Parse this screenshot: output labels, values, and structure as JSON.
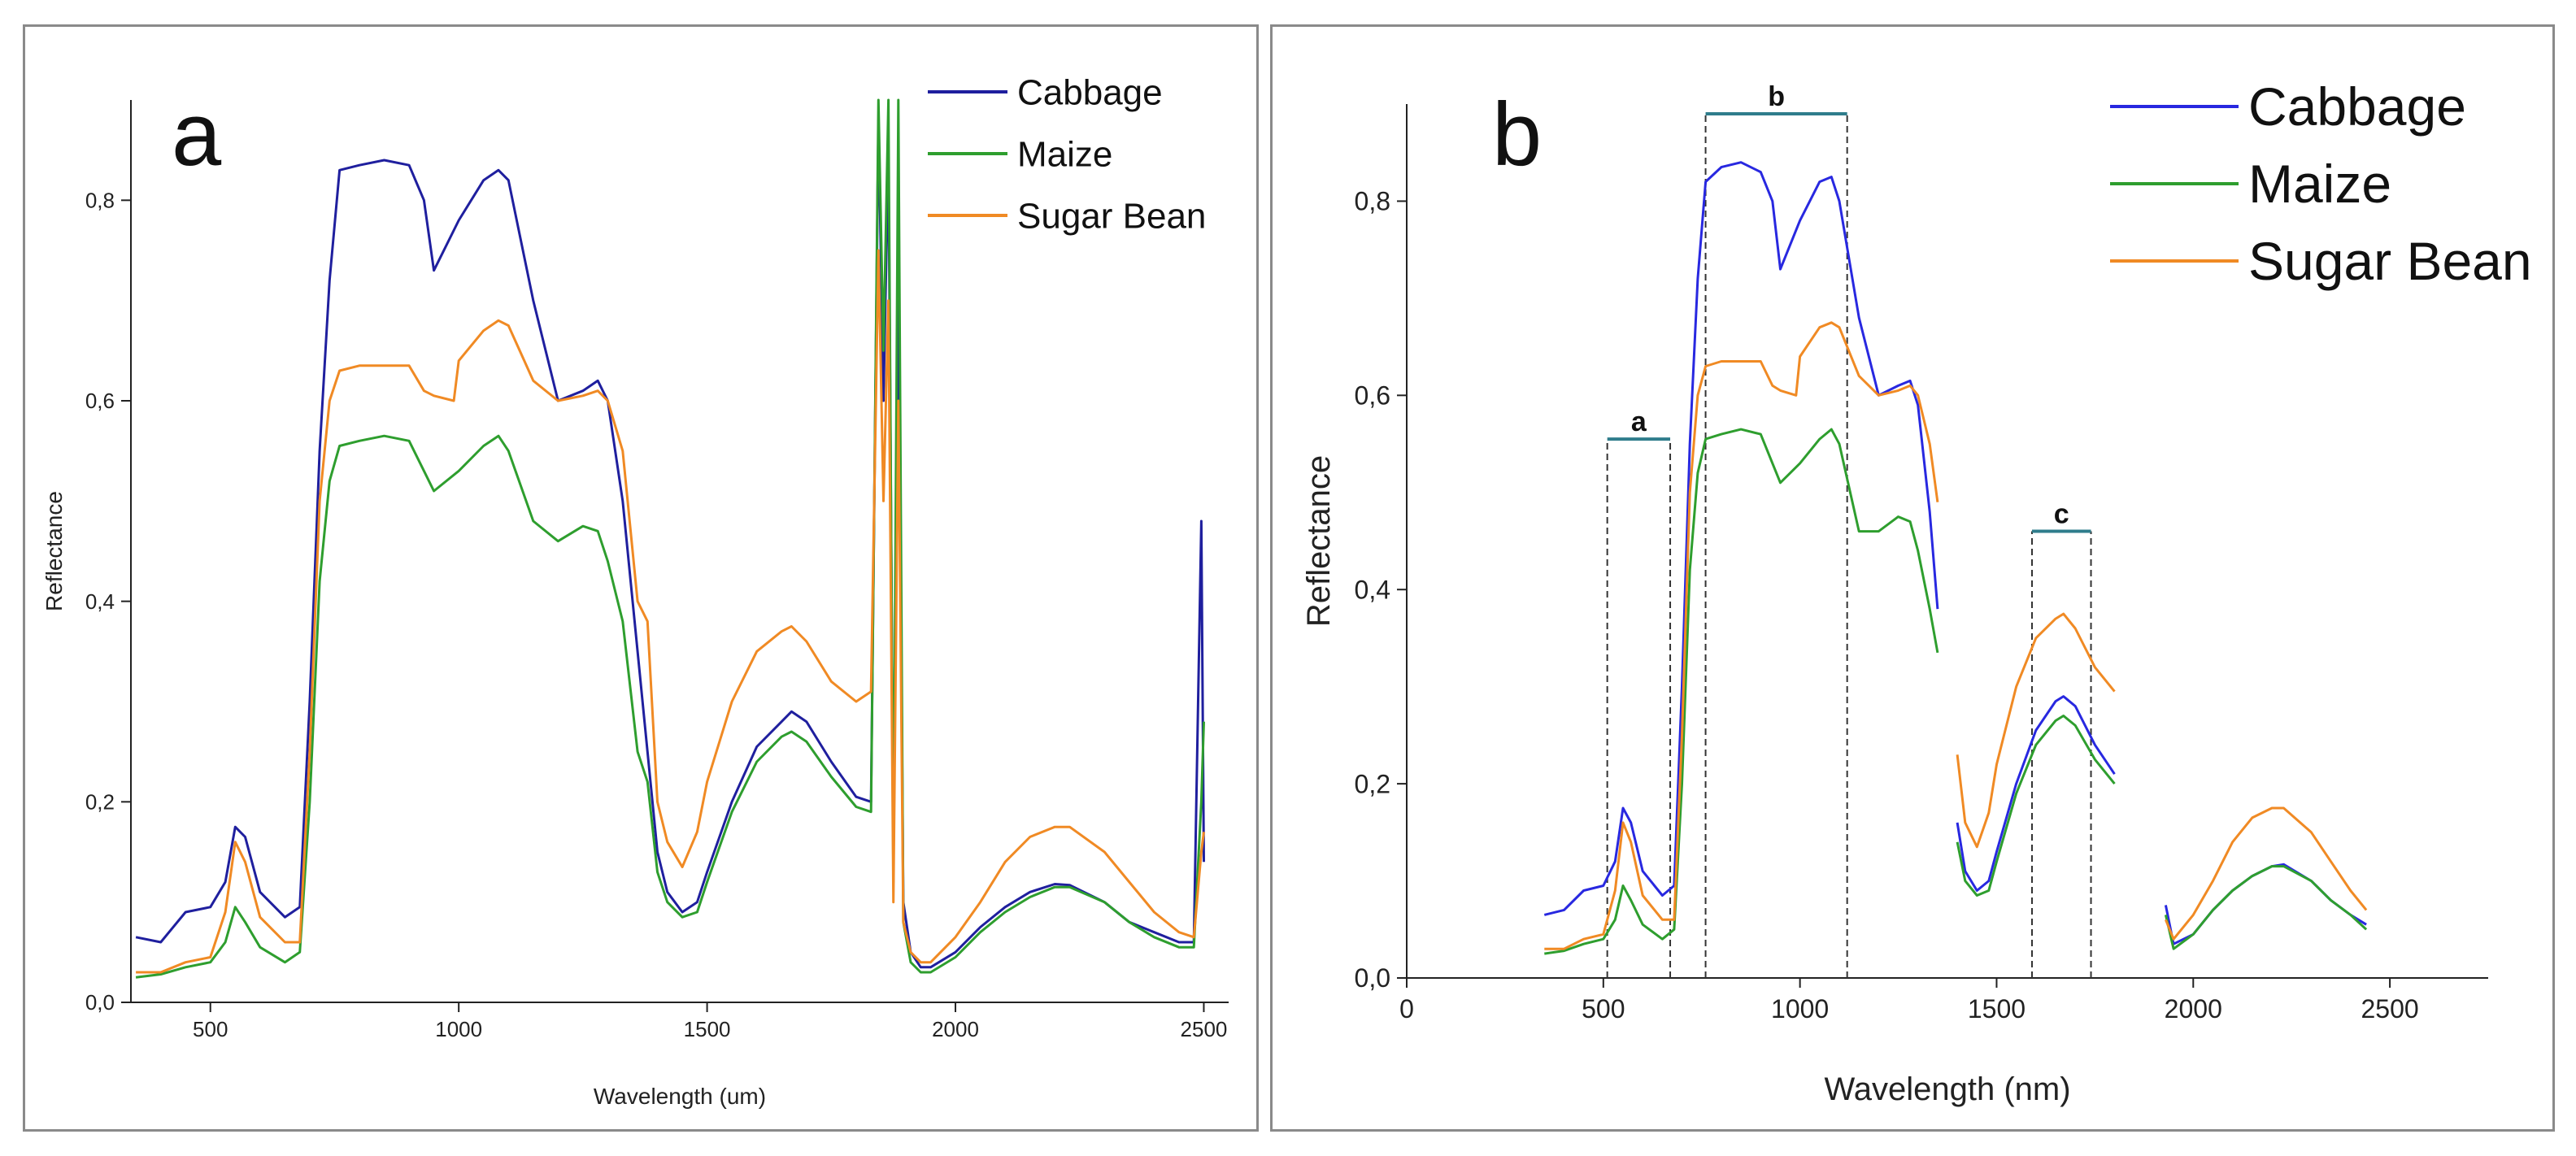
{
  "chart_data": [
    {
      "type": "line",
      "panel_label": "a",
      "title": "",
      "xlabel": "Wavelength (um)",
      "ylabel": "Reflectance",
      "xlim": [
        340,
        2550
      ],
      "ylim": [
        0,
        0.9
      ],
      "x_ticks": [
        500,
        1000,
        1500,
        2000,
        2500
      ],
      "x_tick_labels": [
        "500",
        "1000",
        "1500",
        "2000",
        "2500"
      ],
      "y_ticks": [
        0,
        0.2,
        0.4,
        0.6,
        0.8
      ],
      "y_tick_labels": [
        "0,0",
        "0,2",
        "0,4",
        "0,6",
        "0,8"
      ],
      "legend_position": "top-right",
      "series": [
        {
          "name": "Cabbage",
          "color": "#1f1f9e",
          "x": [
            350,
            400,
            450,
            500,
            530,
            550,
            570,
            600,
            650,
            680,
            700,
            720,
            740,
            760,
            800,
            850,
            900,
            930,
            950,
            1000,
            1050,
            1080,
            1100,
            1150,
            1200,
            1250,
            1280,
            1300,
            1330,
            1360,
            1380,
            1400,
            1420,
            1450,
            1480,
            1500,
            1550,
            1600,
            1650,
            1670,
            1700,
            1750,
            1800,
            1830,
            1845,
            1855,
            1865,
            1875,
            1885,
            1895,
            1910,
            1930,
            1950,
            2000,
            2050,
            2100,
            2150,
            2200,
            2230,
            2300,
            2350,
            2400,
            2450,
            2480,
            2495,
            2500
          ],
          "y": [
            0.065,
            0.06,
            0.09,
            0.095,
            0.12,
            0.175,
            0.165,
            0.11,
            0.085,
            0.095,
            0.3,
            0.55,
            0.72,
            0.83,
            0.835,
            0.84,
            0.835,
            0.8,
            0.73,
            0.78,
            0.82,
            0.83,
            0.82,
            0.7,
            0.6,
            0.61,
            0.62,
            0.6,
            0.5,
            0.35,
            0.25,
            0.15,
            0.11,
            0.09,
            0.1,
            0.13,
            0.2,
            0.255,
            0.28,
            0.29,
            0.28,
            0.24,
            0.205,
            0.2,
            0.88,
            0.6,
            0.85,
            0.15,
            0.7,
            0.1,
            0.05,
            0.035,
            0.035,
            0.05,
            0.075,
            0.095,
            0.11,
            0.118,
            0.117,
            0.1,
            0.08,
            0.07,
            0.06,
            0.06,
            0.48,
            0.14
          ]
        },
        {
          "name": "Maize",
          "color": "#2e9e2e",
          "x": [
            350,
            400,
            450,
            500,
            530,
            550,
            570,
            600,
            650,
            680,
            700,
            720,
            740,
            760,
            800,
            850,
            900,
            930,
            950,
            1000,
            1050,
            1080,
            1100,
            1150,
            1200,
            1250,
            1280,
            1300,
            1330,
            1360,
            1380,
            1400,
            1420,
            1450,
            1480,
            1500,
            1550,
            1600,
            1650,
            1670,
            1700,
            1750,
            1800,
            1830,
            1845,
            1855,
            1865,
            1875,
            1885,
            1895,
            1910,
            1930,
            1950,
            2000,
            2050,
            2100,
            2150,
            2200,
            2230,
            2300,
            2350,
            2400,
            2450,
            2480,
            2495,
            2500
          ],
          "y": [
            0.025,
            0.028,
            0.035,
            0.04,
            0.06,
            0.095,
            0.08,
            0.055,
            0.04,
            0.05,
            0.2,
            0.42,
            0.52,
            0.555,
            0.56,
            0.565,
            0.56,
            0.53,
            0.51,
            0.53,
            0.555,
            0.565,
            0.55,
            0.48,
            0.46,
            0.475,
            0.47,
            0.44,
            0.38,
            0.25,
            0.22,
            0.13,
            0.1,
            0.085,
            0.09,
            0.12,
            0.19,
            0.24,
            0.265,
            0.27,
            0.26,
            0.225,
            0.195,
            0.19,
            0.9,
            0.65,
            0.9,
            0.12,
            0.9,
            0.08,
            0.04,
            0.03,
            0.03,
            0.045,
            0.07,
            0.09,
            0.105,
            0.115,
            0.115,
            0.1,
            0.08,
            0.065,
            0.055,
            0.055,
            0.2,
            0.28
          ]
        },
        {
          "name": "Sugar Bean",
          "color": "#f08a24",
          "x": [
            350,
            400,
            450,
            500,
            530,
            550,
            570,
            600,
            650,
            680,
            700,
            720,
            740,
            760,
            800,
            850,
            900,
            930,
            950,
            990,
            1000,
            1050,
            1080,
            1100,
            1150,
            1200,
            1250,
            1280,
            1300,
            1330,
            1360,
            1380,
            1400,
            1420,
            1450,
            1480,
            1500,
            1550,
            1600,
            1650,
            1670,
            1700,
            1750,
            1800,
            1830,
            1845,
            1855,
            1865,
            1875,
            1885,
            1895,
            1910,
            1930,
            1950,
            2000,
            2050,
            2100,
            2150,
            2200,
            2230,
            2300,
            2350,
            2400,
            2450,
            2480,
            2495,
            2500
          ],
          "y": [
            0.03,
            0.03,
            0.04,
            0.045,
            0.09,
            0.16,
            0.14,
            0.085,
            0.06,
            0.06,
            0.25,
            0.5,
            0.6,
            0.63,
            0.635,
            0.635,
            0.635,
            0.61,
            0.605,
            0.6,
            0.64,
            0.67,
            0.68,
            0.675,
            0.62,
            0.6,
            0.605,
            0.61,
            0.6,
            0.55,
            0.4,
            0.38,
            0.2,
            0.16,
            0.135,
            0.17,
            0.22,
            0.3,
            0.35,
            0.37,
            0.375,
            0.36,
            0.32,
            0.3,
            0.31,
            0.75,
            0.5,
            0.7,
            0.1,
            0.6,
            0.08,
            0.05,
            0.04,
            0.04,
            0.065,
            0.1,
            0.14,
            0.165,
            0.175,
            0.175,
            0.15,
            0.12,
            0.09,
            0.07,
            0.065,
            0.15,
            0.17
          ]
        }
      ]
    },
    {
      "type": "line",
      "panel_label": "b",
      "title": "",
      "xlabel": "Wavelength (nm)",
      "ylabel": "Reflectance",
      "xlim": [
        0,
        2750
      ],
      "ylim": [
        0,
        0.9
      ],
      "x_ticks": [
        0,
        500,
        1000,
        1500,
        2000,
        2500
      ],
      "x_tick_labels": [
        "0",
        "500",
        "1000",
        "1500",
        "2000",
        "2500"
      ],
      "y_ticks": [
        0,
        0.2,
        0.4,
        0.6,
        0.8
      ],
      "y_tick_labels": [
        "0,0",
        "0,2",
        "0,4",
        "0,6",
        "0,8"
      ],
      "legend_position": "top-right",
      "regions": [
        {
          "label": "a",
          "x_start": 510,
          "x_end": 670,
          "y_top": 0.555
        },
        {
          "label": "b",
          "x_start": 760,
          "x_end": 1120,
          "y_top": 0.89
        },
        {
          "label": "c",
          "x_start": 1590,
          "x_end": 1740,
          "y_top": 0.46
        }
      ],
      "series": [
        {
          "name": "Cabbage",
          "color": "#2828e0",
          "segments": [
            {
              "x": [
                350,
                400,
                450,
                500,
                530,
                550,
                570,
                600,
                650,
                680,
                700,
                720,
                740,
                760,
                800,
                850,
                900,
                930,
                950,
                1000,
                1050,
                1080,
                1100,
                1150,
                1200,
                1250,
                1280,
                1300,
                1330,
                1350
              ],
              "y": [
                0.065,
                0.07,
                0.09,
                0.095,
                0.12,
                0.175,
                0.16,
                0.11,
                0.085,
                0.095,
                0.3,
                0.55,
                0.72,
                0.82,
                0.835,
                0.84,
                0.83,
                0.8,
                0.73,
                0.78,
                0.82,
                0.825,
                0.8,
                0.68,
                0.6,
                0.61,
                0.615,
                0.59,
                0.48,
                0.38
              ]
            },
            {
              "x": [
                1400,
                1420,
                1450,
                1480,
                1500,
                1550,
                1600,
                1650,
                1670,
                1700,
                1750,
                1800
              ],
              "y": [
                0.16,
                0.11,
                0.09,
                0.1,
                0.13,
                0.2,
                0.255,
                0.285,
                0.29,
                0.28,
                0.24,
                0.21
              ]
            },
            {
              "x": [
                1930,
                1950,
                2000,
                2050,
                2100,
                2150,
                2200,
                2230,
                2300,
                2350,
                2400,
                2440
              ],
              "y": [
                0.075,
                0.035,
                0.045,
                0.07,
                0.09,
                0.105,
                0.115,
                0.117,
                0.1,
                0.08,
                0.065,
                0.055
              ]
            }
          ]
        },
        {
          "name": "Maize",
          "color": "#2e9e2e",
          "segments": [
            {
              "x": [
                350,
                400,
                450,
                500,
                530,
                550,
                570,
                600,
                650,
                680,
                700,
                720,
                740,
                760,
                800,
                850,
                900,
                930,
                950,
                1000,
                1050,
                1080,
                1100,
                1150,
                1200,
                1250,
                1280,
                1300,
                1330,
                1350
              ],
              "y": [
                0.025,
                0.028,
                0.035,
                0.04,
                0.06,
                0.095,
                0.08,
                0.055,
                0.04,
                0.05,
                0.2,
                0.42,
                0.52,
                0.555,
                0.56,
                0.565,
                0.56,
                0.53,
                0.51,
                0.53,
                0.555,
                0.565,
                0.55,
                0.46,
                0.46,
                0.475,
                0.47,
                0.44,
                0.38,
                0.335
              ]
            },
            {
              "x": [
                1400,
                1420,
                1450,
                1480,
                1500,
                1550,
                1600,
                1650,
                1670,
                1700,
                1750,
                1800
              ],
              "y": [
                0.14,
                0.1,
                0.085,
                0.09,
                0.12,
                0.19,
                0.24,
                0.265,
                0.27,
                0.26,
                0.225,
                0.2
              ]
            },
            {
              "x": [
                1930,
                1950,
                2000,
                2050,
                2100,
                2150,
                2200,
                2230,
                2300,
                2350,
                2400,
                2440
              ],
              "y": [
                0.065,
                0.03,
                0.045,
                0.07,
                0.09,
                0.105,
                0.115,
                0.115,
                0.1,
                0.08,
                0.065,
                0.05
              ]
            }
          ]
        },
        {
          "name": "Sugar Bean",
          "color": "#f08a24",
          "segments": [
            {
              "x": [
                350,
                400,
                450,
                500,
                530,
                550,
                570,
                600,
                650,
                680,
                700,
                720,
                740,
                760,
                800,
                850,
                900,
                930,
                950,
                990,
                1000,
                1050,
                1080,
                1100,
                1150,
                1200,
                1250,
                1280,
                1300,
                1330,
                1350
              ],
              "y": [
                0.03,
                0.03,
                0.04,
                0.045,
                0.09,
                0.16,
                0.14,
                0.085,
                0.06,
                0.06,
                0.25,
                0.5,
                0.6,
                0.63,
                0.635,
                0.635,
                0.635,
                0.61,
                0.605,
                0.6,
                0.64,
                0.67,
                0.675,
                0.67,
                0.62,
                0.6,
                0.605,
                0.61,
                0.6,
                0.55,
                0.49
              ]
            },
            {
              "x": [
                1400,
                1420,
                1450,
                1480,
                1500,
                1550,
                1600,
                1650,
                1670,
                1700,
                1750,
                1800
              ],
              "y": [
                0.23,
                0.16,
                0.135,
                0.17,
                0.22,
                0.3,
                0.35,
                0.37,
                0.375,
                0.36,
                0.32,
                0.295
              ]
            },
            {
              "x": [
                1930,
                1950,
                2000,
                2050,
                2100,
                2150,
                2200,
                2230,
                2300,
                2350,
                2400,
                2440
              ],
              "y": [
                0.06,
                0.04,
                0.065,
                0.1,
                0.14,
                0.165,
                0.175,
                0.175,
                0.15,
                0.12,
                0.09,
                0.07
              ]
            }
          ]
        }
      ]
    }
  ]
}
